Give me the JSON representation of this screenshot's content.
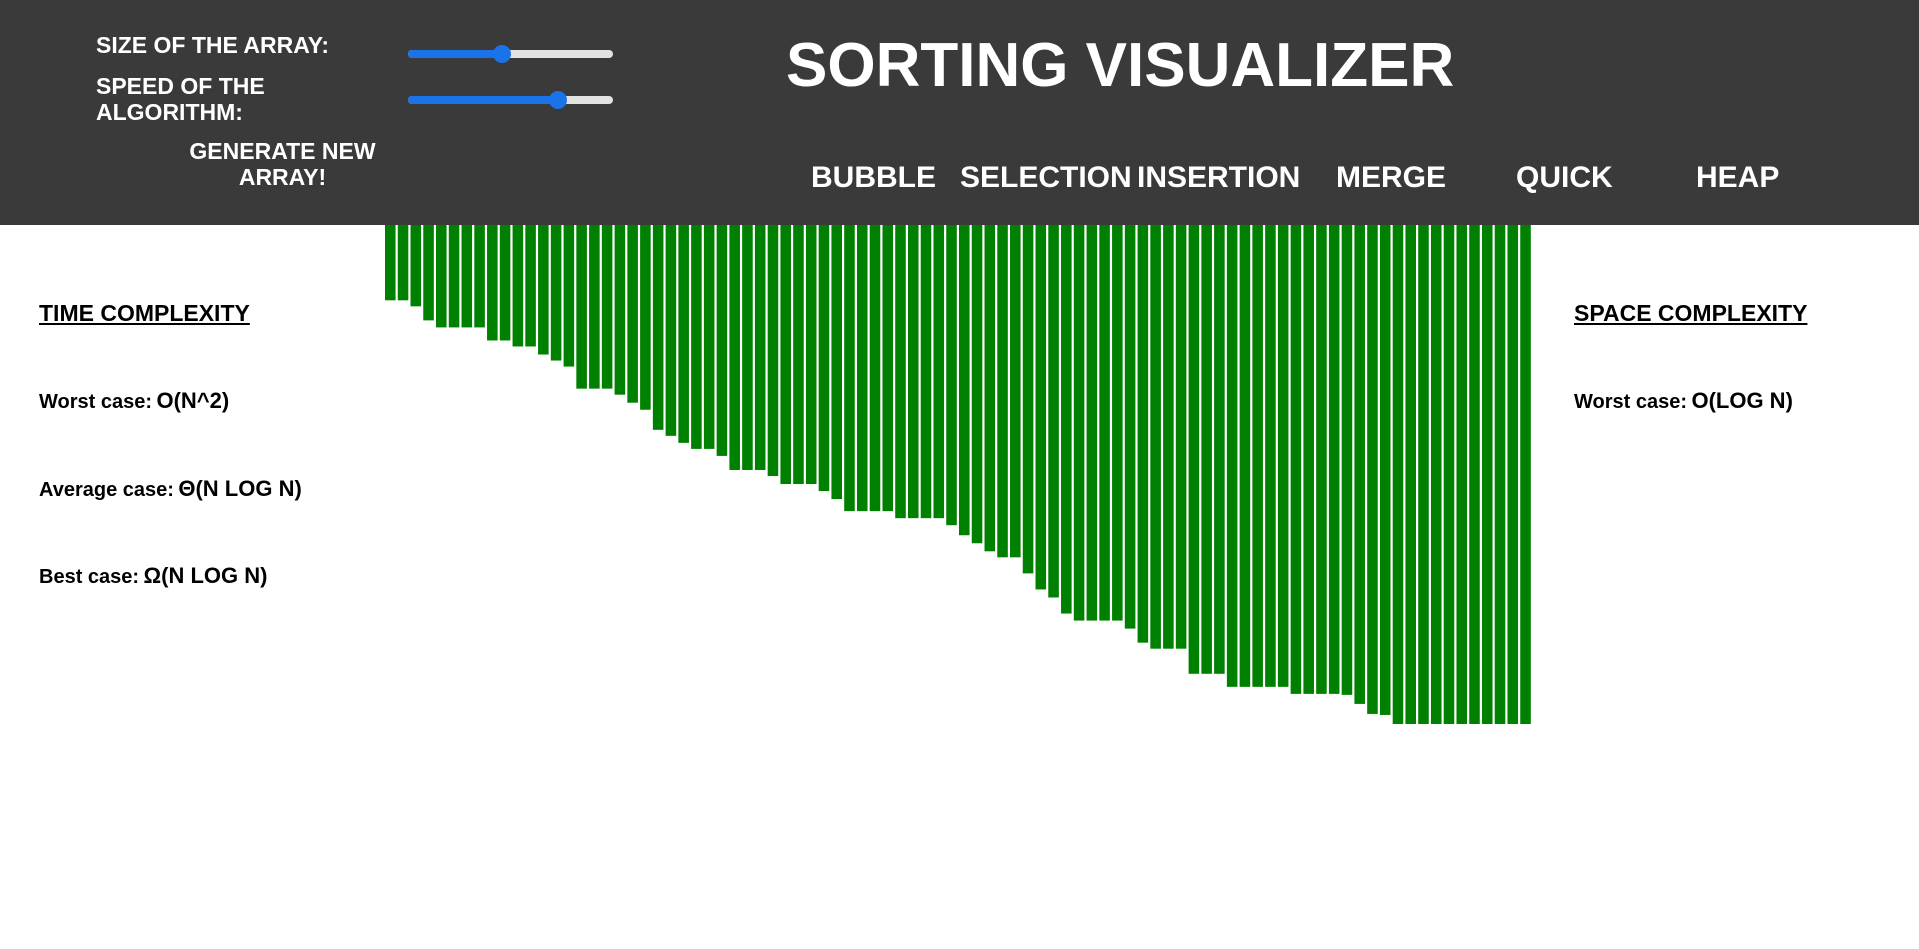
{
  "controls": {
    "size_label": "SIZE OF THE ARRAY:",
    "speed_label": "SPEED OF THE ALGORITHM:",
    "size_value": 0.46,
    "speed_value": 0.73,
    "generate_label": "GENERATE NEW ARRAY!"
  },
  "title": "SORTING VISUALIZER",
  "algorithms": [
    "BUBBLE",
    "SELECTION",
    "INSERTION",
    "MERGE",
    "QUICK",
    "HEAP"
  ],
  "time_complexity": {
    "heading": "TIME COMPLEXITY",
    "worst_label": "Worst case:",
    "worst_value": "O(N^2)",
    "average_label": "Average case:",
    "average_value": "Θ(N LOG N)",
    "best_label": "Best case:",
    "best_value": "Ω(N LOG N)"
  },
  "space_complexity": {
    "heading": "SPACE COMPLEXITY",
    "worst_label": "Worst case:",
    "worst_value": "O(LOG N)"
  },
  "colors": {
    "header_bg": "#3a3a3a",
    "bar": "#008000",
    "accent": "#1a73e8"
  },
  "chart_data": {
    "type": "bar",
    "values": [
      75,
      75,
      81,
      95,
      102,
      102,
      102,
      102,
      115,
      115,
      121,
      121,
      129,
      135,
      141,
      163,
      163,
      163,
      169,
      177,
      184,
      204,
      210,
      217,
      223,
      223,
      230,
      244,
      244,
      244,
      250,
      258,
      258,
      258,
      265,
      273,
      285,
      285,
      285,
      285,
      292,
      292,
      292,
      292,
      299,
      309,
      317,
      325,
      331,
      331,
      347,
      363,
      371,
      387,
      394,
      394,
      394,
      394,
      402,
      416,
      422,
      422,
      422,
      447,
      447,
      447,
      460,
      460,
      460,
      460,
      460,
      467,
      467,
      467,
      467,
      468,
      477,
      487,
      488,
      497,
      497,
      497,
      497,
      497,
      497,
      497,
      497,
      497,
      497,
      497
    ],
    "ylim": [
      0,
      500
    ],
    "xlabel": "",
    "ylabel": ""
  }
}
